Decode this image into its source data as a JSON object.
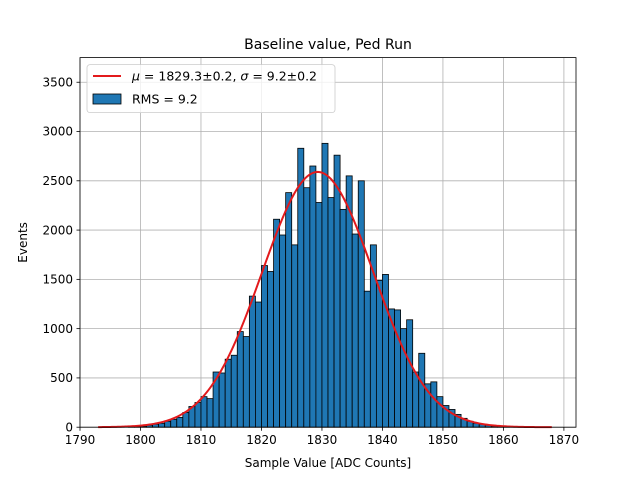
{
  "chart_data": {
    "type": "bar",
    "title": "Baseline value, Ped Run",
    "xlabel": "Sample Value [ADC Counts]",
    "ylabel": "Events",
    "xlim": [
      1790,
      1872
    ],
    "ylim": [
      0,
      3750
    ],
    "xticks": [
      1790,
      1800,
      1810,
      1820,
      1830,
      1840,
      1850,
      1860,
      1870
    ],
    "yticks": [
      0,
      500,
      1000,
      1500,
      2000,
      2500,
      3000,
      3500
    ],
    "grid": true,
    "legend_position": "top-left",
    "bar_color": "#1f77b4",
    "bar_edge_color": "#000000",
    "fit_color": "#e31a1c",
    "histogram": {
      "name": "RMS = 9.2",
      "bin_width": 1,
      "bin_left_edges": [
        1793,
        1794,
        1795,
        1796,
        1797,
        1798,
        1799,
        1800,
        1801,
        1802,
        1803,
        1804,
        1805,
        1806,
        1807,
        1808,
        1809,
        1810,
        1811,
        1812,
        1813,
        1814,
        1815,
        1816,
        1817,
        1818,
        1819,
        1820,
        1821,
        1822,
        1823,
        1824,
        1825,
        1826,
        1827,
        1828,
        1829,
        1830,
        1831,
        1832,
        1833,
        1834,
        1835,
        1836,
        1837,
        1838,
        1839,
        1840,
        1841,
        1842,
        1843,
        1844,
        1845,
        1846,
        1847,
        1848,
        1849,
        1850,
        1851,
        1852,
        1853,
        1854,
        1855,
        1856,
        1857,
        1858,
        1859,
        1860,
        1861,
        1862,
        1863,
        1864,
        1865,
        1866,
        1867
      ],
      "counts": [
        0,
        0,
        0,
        0,
        0,
        5,
        5,
        10,
        20,
        30,
        40,
        60,
        80,
        100,
        150,
        210,
        250,
        310,
        290,
        560,
        550,
        690,
        730,
        970,
        920,
        1330,
        1270,
        1640,
        1580,
        2110,
        1950,
        2380,
        1850,
        2830,
        2430,
        2650,
        2280,
        2880,
        2330,
        2760,
        2210,
        2550,
        1960,
        2500,
        1380,
        1850,
        1490,
        1550,
        1200,
        1190,
        1000,
        1090,
        560,
        750,
        440,
        460,
        310,
        220,
        180,
        130,
        90,
        60,
        40,
        30,
        20,
        10,
        10,
        5,
        0,
        0,
        0,
        0,
        0,
        0,
        0
      ]
    },
    "fit": {
      "name": "μ = 1829.3±0.2, σ = 9.2±0.2",
      "name_parts": {
        "mu_symbol": "μ",
        "mu_text": " = 1829.3±0.2, ",
        "sigma_symbol": "σ",
        "sigma_text": " = 9.2±0.2"
      },
      "type": "gaussian",
      "mu": 1829.3,
      "sigma": 9.2,
      "amplitude": 2590,
      "x_range": [
        1793,
        1868
      ]
    }
  }
}
